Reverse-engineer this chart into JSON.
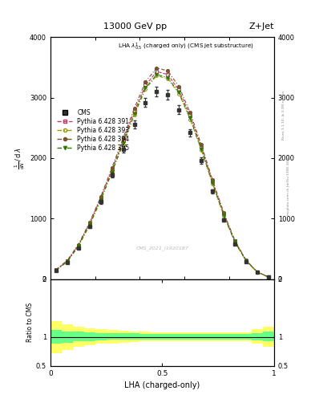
{
  "title": "13000 GeV pp",
  "title_right": "Z+Jet",
  "annotation": "LHA $\\lambda^{1}_{0.5}$ (charged only) (CMS jet substructure)",
  "watermark": "CMS_2021_I1920187",
  "right_label_top": "Rivet 3.1.10; ≥ 3.1M events",
  "right_label_bot": "mcplots.cern.ch [arXiv:1306.3436]",
  "xlabel": "LHA (charged-only)",
  "ylabel": "1 / mathrm{d}N / mathrm{d} lambda",
  "ylabel_ratio": "Ratio to CMS",
  "xlim": [
    0,
    1
  ],
  "ylim_main": [
    0,
    4000
  ],
  "ylim_ratio": [
    0.5,
    2
  ],
  "x_data": [
    0.025,
    0.075,
    0.125,
    0.175,
    0.225,
    0.275,
    0.325,
    0.375,
    0.425,
    0.475,
    0.525,
    0.575,
    0.625,
    0.675,
    0.725,
    0.775,
    0.825,
    0.875,
    0.925,
    0.975
  ],
  "cms_y": [
    140,
    280,
    520,
    870,
    1280,
    1720,
    2150,
    2560,
    2920,
    3100,
    3050,
    2800,
    2420,
    1960,
    1450,
    980,
    580,
    290,
    115,
    35
  ],
  "py391_y": [
    155,
    300,
    560,
    920,
    1340,
    1810,
    2290,
    2770,
    3200,
    3430,
    3380,
    3120,
    2700,
    2180,
    1610,
    1080,
    630,
    310,
    120,
    38
  ],
  "py393_y": [
    148,
    288,
    540,
    890,
    1300,
    1760,
    2230,
    2710,
    3140,
    3360,
    3310,
    3060,
    2640,
    2130,
    1570,
    1050,
    610,
    300,
    116,
    36
  ],
  "py394_y": [
    160,
    310,
    575,
    940,
    1360,
    1840,
    2330,
    2820,
    3260,
    3490,
    3440,
    3180,
    2750,
    2220,
    1640,
    1100,
    640,
    315,
    122,
    39
  ],
  "py395_y": [
    150,
    292,
    548,
    900,
    1315,
    1775,
    2250,
    2730,
    3160,
    3380,
    3330,
    3080,
    2660,
    2145,
    1585,
    1060,
    615,
    303,
    118,
    37
  ],
  "cms_color": "#333333",
  "py391_color": "#cc3366",
  "py393_color": "#999900",
  "py394_color": "#775533",
  "py395_color": "#337700",
  "green_band_lo": [
    0.88,
    0.9,
    0.92,
    0.93,
    0.94,
    0.95,
    0.95,
    0.95,
    0.96,
    0.96,
    0.96,
    0.96,
    0.96,
    0.96,
    0.96,
    0.96,
    0.96,
    0.96,
    0.94,
    0.92
  ],
  "green_band_hi": [
    1.12,
    1.1,
    1.09,
    1.08,
    1.07,
    1.06,
    1.06,
    1.06,
    1.05,
    1.05,
    1.05,
    1.05,
    1.05,
    1.05,
    1.05,
    1.05,
    1.05,
    1.05,
    1.07,
    1.09
  ],
  "yellow_band_lo": [
    0.72,
    0.78,
    0.83,
    0.86,
    0.88,
    0.89,
    0.9,
    0.91,
    0.92,
    0.93,
    0.93,
    0.93,
    0.93,
    0.93,
    0.93,
    0.93,
    0.93,
    0.93,
    0.88,
    0.83
  ],
  "yellow_band_hi": [
    1.28,
    1.22,
    1.18,
    1.15,
    1.13,
    1.12,
    1.11,
    1.1,
    1.09,
    1.08,
    1.08,
    1.08,
    1.08,
    1.08,
    1.08,
    1.08,
    1.08,
    1.08,
    1.13,
    1.18
  ]
}
